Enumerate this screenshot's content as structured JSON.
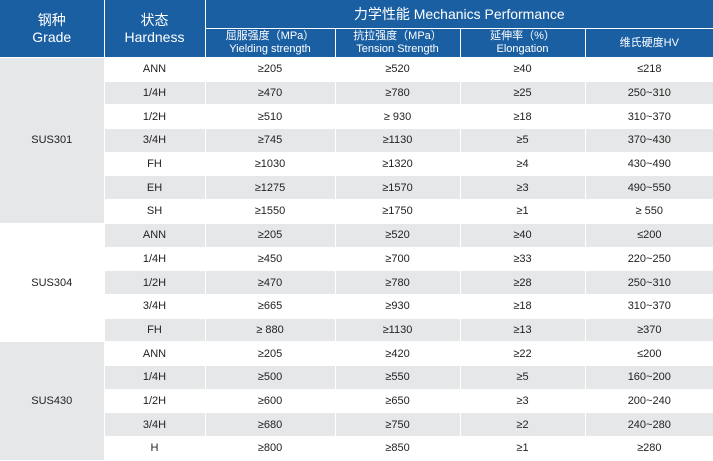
{
  "header": {
    "grade_cn": "钢种",
    "grade_en": "Grade",
    "hardness_cn": "状态",
    "hardness_en": "Hardness",
    "performance": "力学性能 Mechanics Performance",
    "yield_cn": "屈服强度（MPa）",
    "yield_en": "Yielding strength",
    "tensile_cn": "抗拉强度（MPa）",
    "tensile_en": "Tension Strength",
    "elong_cn": "延伸率（%）",
    "elong_en": "Elongation",
    "hv": "维氏硬度HV"
  },
  "groups": [
    {
      "grade": "SUS301",
      "rows": [
        [
          "ANN",
          "≥205",
          "≥520",
          "≥40",
          "≤218"
        ],
        [
          "1/4H",
          "≥470",
          "≥780",
          "≥25",
          "250~310"
        ],
        [
          "1/2H",
          "≥510",
          "≥ 930",
          "≥18",
          "310~370"
        ],
        [
          "3/4H",
          "≥745",
          "≥1130",
          "≥5",
          "370~430"
        ],
        [
          "FH",
          "≥1030",
          "≥1320",
          "≥4",
          "430~490"
        ],
        [
          "EH",
          "≥1275",
          "≥1570",
          "≥3",
          "490~550"
        ],
        [
          "SH",
          "≥1550",
          "≥1750",
          "≥1",
          "≥ 550"
        ]
      ]
    },
    {
      "grade": "SUS304",
      "rows": [
        [
          "ANN",
          "≥205",
          "≥520",
          "≥40",
          "≤200"
        ],
        [
          "1/4H",
          "≥450",
          "≥700",
          "≥33",
          "220~250"
        ],
        [
          "1/2H",
          "≥470",
          "≥780",
          "≥28",
          "250~310"
        ],
        [
          "3/4H",
          "≥665",
          "≥930",
          "≥18",
          "310~370"
        ],
        [
          "FH",
          "≥ 880",
          "≥1130",
          "≥13",
          "≥370"
        ]
      ]
    },
    {
      "grade": "SUS430",
      "rows": [
        [
          "ANN",
          "≥205",
          "≥420",
          "≥22",
          "≤200"
        ],
        [
          "1/4H",
          "≥500",
          "≥550",
          "≥5",
          "160~200"
        ],
        [
          "1/2H",
          "≥600",
          "≥650",
          "≥3",
          "200~240"
        ],
        [
          "3/4H",
          "≥680",
          "≥750",
          "≥2",
          "240~280"
        ],
        [
          "H",
          "≥800",
          "≥850",
          "≥1",
          "≥280"
        ]
      ]
    }
  ]
}
